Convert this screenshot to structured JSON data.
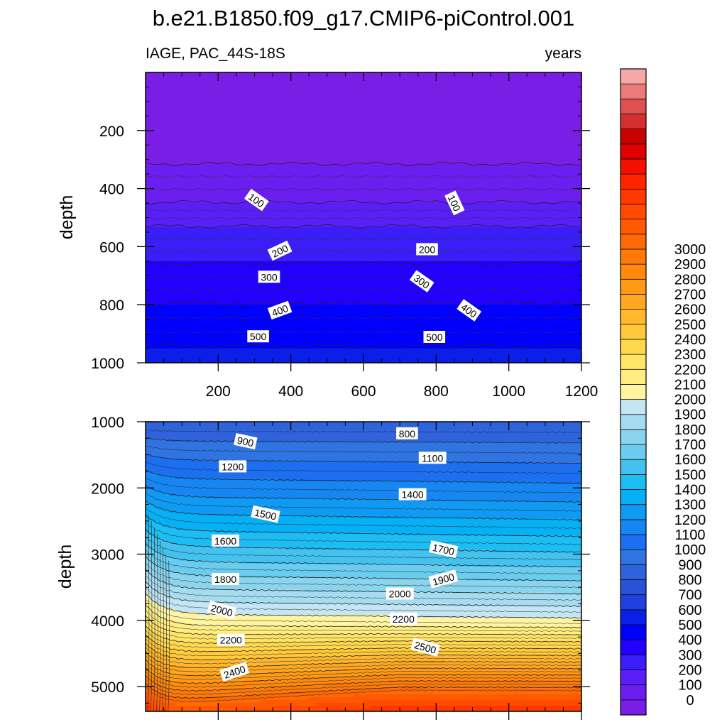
{
  "title": "b.e21.B1850.f09_g17.CMIP6-piControl.001",
  "chart_data": {
    "type": "contour",
    "title": "b.e21.B1850.f09_g17.CMIP6-piControl.001",
    "variable_label": "IAGE, PAC_44S-18S",
    "units_label": "years",
    "x": {
      "label": "",
      "range": [
        0,
        1200
      ],
      "ticks": [
        200,
        400,
        600,
        800,
        1000,
        1200
      ]
    },
    "panels": [
      {
        "name": "upper",
        "ylabel": "depth",
        "yrange": [
          0,
          1000
        ],
        "yticks": [
          200,
          400,
          600,
          800,
          1000
        ],
        "contour_depths": [
          {
            "value": 0,
            "depth": 315
          },
          {
            "value": 100,
            "depth": 447
          },
          {
            "value": 200,
            "depth": 530
          },
          {
            "value": 300,
            "depth": 658
          },
          {
            "value": 400,
            "depth": 795
          },
          {
            "value": 500,
            "depth": 943
          }
        ],
        "labels": [
          {
            "text": "100",
            "x": 305,
            "depth": 440,
            "angle": 35
          },
          {
            "text": "100",
            "x": 850,
            "depth": 450,
            "angle": 65
          },
          {
            "text": "200",
            "x": 370,
            "depth": 615,
            "angle": -25
          },
          {
            "text": "200",
            "x": 775,
            "depth": 610,
            "angle": 0
          },
          {
            "text": "300",
            "x": 340,
            "depth": 705,
            "angle": 0
          },
          {
            "text": "300",
            "x": 760,
            "depth": 720,
            "angle": 35
          },
          {
            "text": "400",
            "x": 370,
            "depth": 820,
            "angle": -20
          },
          {
            "text": "400",
            "x": 890,
            "depth": 820,
            "angle": 35
          },
          {
            "text": "500",
            "x": 310,
            "depth": 910,
            "angle": 0
          },
          {
            "text": "500",
            "x": 795,
            "depth": 912,
            "angle": 0
          }
        ]
      },
      {
        "name": "lower",
        "ylabel": "depth",
        "yrange": [
          1000,
          5375
        ],
        "yticks": [
          1000,
          2000,
          3000,
          4000,
          5000
        ],
        "labels": [
          {
            "text": "900",
            "x": 275,
            "depth": 1300,
            "angle": 12
          },
          {
            "text": "800",
            "x": 720,
            "depth": 1180,
            "angle": 0
          },
          {
            "text": "1100",
            "x": 790,
            "depth": 1550,
            "angle": 0
          },
          {
            "text": "1200",
            "x": 240,
            "depth": 1680,
            "angle": 0
          },
          {
            "text": "1400",
            "x": 735,
            "depth": 2100,
            "angle": 0
          },
          {
            "text": "1500",
            "x": 330,
            "depth": 2400,
            "angle": 12
          },
          {
            "text": "1600",
            "x": 220,
            "depth": 2800,
            "angle": 0
          },
          {
            "text": "1700",
            "x": 820,
            "depth": 2930,
            "angle": 12
          },
          {
            "text": "1800",
            "x": 220,
            "depth": 3380,
            "angle": 0
          },
          {
            "text": "1900",
            "x": 820,
            "depth": 3380,
            "angle": -15
          },
          {
            "text": "2000",
            "x": 210,
            "depth": 3850,
            "angle": 15
          },
          {
            "text": "2000",
            "x": 700,
            "depth": 3600,
            "angle": 0
          },
          {
            "text": "2200",
            "x": 235,
            "depth": 4300,
            "angle": 0
          },
          {
            "text": "2200",
            "x": 710,
            "depth": 3980,
            "angle": 0
          },
          {
            "text": "2400",
            "x": 245,
            "depth": 4780,
            "angle": -18
          },
          {
            "text": "2500",
            "x": 770,
            "depth": 4410,
            "angle": 15
          }
        ]
      }
    ],
    "colorbar": {
      "levels": [
        0,
        100,
        200,
        300,
        400,
        500,
        600,
        700,
        800,
        900,
        1000,
        1100,
        1200,
        1300,
        1400,
        1500,
        1600,
        1700,
        1800,
        1900,
        2000,
        2100,
        2200,
        2300,
        2400,
        2500,
        2600,
        2700,
        2800,
        2900,
        3000
      ],
      "colors": [
        "#7a1ee6",
        "#6a1ef0",
        "#5a1ef7",
        "#3a1ef8",
        "#2200ff",
        "#0000fc",
        "#0a1fe8",
        "#2040e0",
        "#2a52d8",
        "#2f63dc",
        "#3074e2",
        "#1b6ff0",
        "#1687f2",
        "#0f9af4",
        "#05b0f4",
        "#1cbdf2",
        "#43c2f0",
        "#6accee",
        "#8bd4ee",
        "#a6dcf0",
        "#c4e6f4",
        "#fff5a0",
        "#ffed80",
        "#ffe466",
        "#ffd84e",
        "#ffc93a",
        "#ffb82e",
        "#ffa820",
        "#ff9a16",
        "#ff8a0c",
        "#ff7a06",
        "#ff6a04",
        "#ff5a02",
        "#ff4a00",
        "#ff3800",
        "#ff2400",
        "#f41000",
        "#e00000",
        "#c80000",
        "#d23030",
        "#e05050",
        "#ec7a7a",
        "#f6a8a8"
      ]
    }
  }
}
